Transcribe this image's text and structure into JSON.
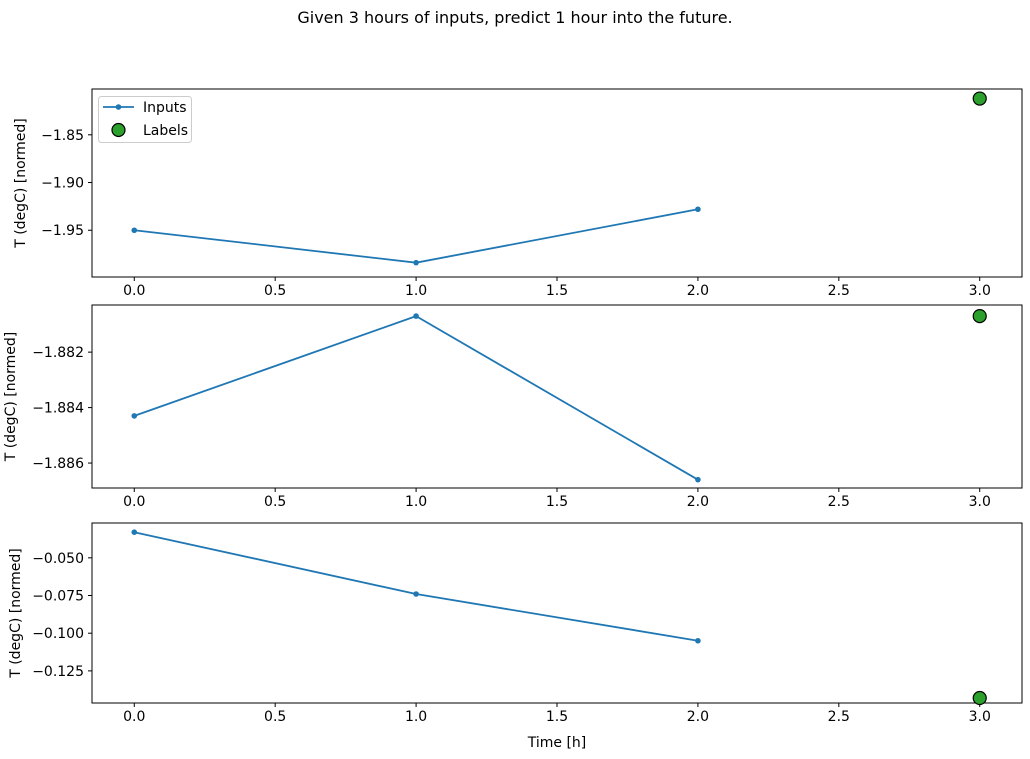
{
  "figure": {
    "title": "Given 3 hours of inputs, predict 1 hour into the future.",
    "background": "#ffffff",
    "text_color": "#000000",
    "spine_color": "#000000"
  },
  "legend": {
    "position": "upper-left",
    "items": [
      {
        "label": "Inputs",
        "marker": "line-with-dot",
        "color": "#1f77b4"
      },
      {
        "label": "Labels",
        "marker": "circle",
        "fill": "#2ca02c",
        "edge": "#000000"
      }
    ]
  },
  "chart_data": [
    {
      "type": "line",
      "title": "",
      "xlabel": "",
      "ylabel": "T (degC) [normed]",
      "xlim": [
        -0.15,
        3.15
      ],
      "ylim": [
        -1.999,
        -1.802
      ],
      "grid": false,
      "legend": true,
      "xticks": [
        0,
        0.5,
        1,
        1.5,
        2,
        2.5,
        3
      ],
      "xtick_labels": [
        "0.0",
        "0.5",
        "1.0",
        "1.5",
        "2.0",
        "2.5",
        "3.0"
      ],
      "yticks": [
        -1.85,
        -1.9,
        -1.95
      ],
      "ytick_labels": [
        "−1.85",
        "−1.90",
        "−1.95"
      ],
      "series": [
        {
          "name": "Inputs",
          "style": "line",
          "color": "#1f77b4",
          "x": [
            0,
            1,
            2
          ],
          "values": [
            -1.95,
            -1.984,
            -1.928
          ]
        },
        {
          "name": "Labels",
          "style": "scatter",
          "fill": "#2ca02c",
          "edge": "#000000",
          "x": [
            3
          ],
          "values": [
            -1.812
          ]
        }
      ]
    },
    {
      "type": "line",
      "title": "",
      "xlabel": "",
      "ylabel": "T (degC) [normed]",
      "xlim": [
        -0.15,
        3.15
      ],
      "ylim": [
        -1.8869,
        -1.8803
      ],
      "grid": false,
      "legend": false,
      "xticks": [
        0,
        0.5,
        1,
        1.5,
        2,
        2.5,
        3
      ],
      "xtick_labels": [
        "0.0",
        "0.5",
        "1.0",
        "1.5",
        "2.0",
        "2.5",
        "3.0"
      ],
      "yticks": [
        -1.882,
        -1.884,
        -1.886
      ],
      "ytick_labels": [
        "−1.882",
        "−1.884",
        "−1.886"
      ],
      "series": [
        {
          "name": "Inputs",
          "style": "line",
          "color": "#1f77b4",
          "x": [
            0,
            1,
            2
          ],
          "values": [
            -1.8843,
            -1.8807,
            -1.8866
          ]
        },
        {
          "name": "Labels",
          "style": "scatter",
          "fill": "#2ca02c",
          "edge": "#000000",
          "x": [
            3
          ],
          "values": [
            -1.8807
          ]
        }
      ]
    },
    {
      "type": "line",
      "title": "",
      "xlabel": "Time [h]",
      "ylabel": "T (degC) [normed]",
      "xlim": [
        -0.15,
        3.15
      ],
      "ylim": [
        -0.1463,
        -0.0269
      ],
      "grid": false,
      "legend": false,
      "xticks": [
        0,
        0.5,
        1,
        1.5,
        2,
        2.5,
        3
      ],
      "xtick_labels": [
        "0.0",
        "0.5",
        "1.0",
        "1.5",
        "2.0",
        "2.5",
        "3.0"
      ],
      "yticks": [
        -0.05,
        -0.075,
        -0.1,
        -0.125
      ],
      "ytick_labels": [
        "−0.050",
        "−0.075",
        "−0.100",
        "−0.125"
      ],
      "series": [
        {
          "name": "Inputs",
          "style": "line",
          "color": "#1f77b4",
          "x": [
            0,
            1,
            2
          ],
          "values": [
            -0.033,
            -0.074,
            -0.105
          ]
        },
        {
          "name": "Labels",
          "style": "scatter",
          "fill": "#2ca02c",
          "edge": "#000000",
          "x": [
            3
          ],
          "values": [
            -0.143
          ]
        }
      ]
    }
  ]
}
